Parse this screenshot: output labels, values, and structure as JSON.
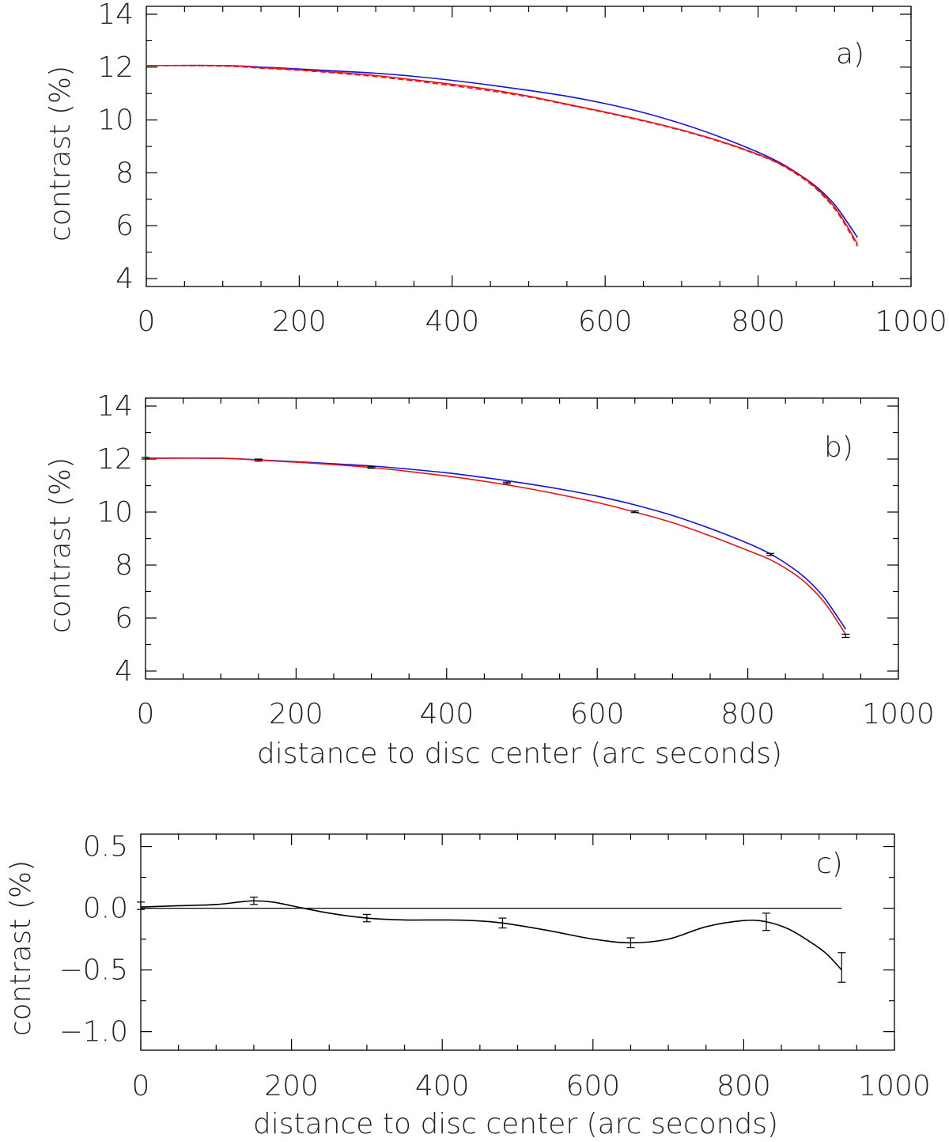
{
  "colors": {
    "observed": "#e8141c",
    "model": "#1414d8",
    "difference": "#000000",
    "axes": "#000000"
  },
  "chart_data": [
    {
      "type": "line",
      "panel_label": "a)",
      "xlabel": "",
      "ylabel": "contrast (%)",
      "xlim": [
        0,
        1000
      ],
      "ylim": [
        3.7,
        14.3
      ],
      "xticks": [
        0,
        200,
        400,
        600,
        800,
        1000
      ],
      "yticks": [
        4,
        6,
        8,
        10,
        12,
        14
      ],
      "x_tick_labels": [
        "0",
        "200",
        "400",
        "600",
        "800",
        "1000"
      ],
      "y_tick_labels": [
        "4",
        "6",
        "8",
        "10",
        "12",
        "14"
      ],
      "series": [
        {
          "style": "solid",
          "color": "#1414d8",
          "x": [
            0,
            100,
            150,
            200,
            250,
            300,
            350,
            400,
            450,
            500,
            550,
            600,
            650,
            700,
            750,
            800,
            830,
            860,
            880,
            900,
            915,
            930
          ],
          "y": [
            12.06,
            12.06,
            12.0,
            11.93,
            11.85,
            11.77,
            11.65,
            11.5,
            11.32,
            11.12,
            10.9,
            10.62,
            10.28,
            9.86,
            9.36,
            8.78,
            8.36,
            7.82,
            7.38,
            6.8,
            6.2,
            5.55
          ]
        },
        {
          "style": "solid",
          "color": "#e8141c",
          "x": [
            0,
            100,
            150,
            200,
            250,
            300,
            350,
            400,
            450,
            500,
            550,
            600,
            650,
            700,
            750,
            800,
            830,
            860,
            880,
            900,
            915,
            930
          ],
          "y": [
            12.06,
            12.06,
            11.98,
            11.9,
            11.8,
            11.68,
            11.52,
            11.35,
            11.15,
            10.9,
            10.6,
            10.3,
            9.98,
            9.62,
            9.2,
            8.7,
            8.32,
            7.8,
            7.32,
            6.7,
            6.05,
            5.3
          ]
        },
        {
          "style": "dashed",
          "color": "#e8141c",
          "x": [
            0,
            100,
            150,
            200,
            250,
            300,
            350,
            400,
            450,
            500,
            550,
            600,
            650,
            700,
            750,
            800,
            830,
            860,
            880,
            900,
            915,
            930
          ],
          "y": [
            12.06,
            12.04,
            11.96,
            11.88,
            11.77,
            11.64,
            11.48,
            11.3,
            11.1,
            10.87,
            10.58,
            10.28,
            9.96,
            9.6,
            9.18,
            8.68,
            8.3,
            7.76,
            7.28,
            6.64,
            5.98,
            5.22
          ]
        }
      ]
    },
    {
      "type": "line",
      "panel_label": "b)",
      "xlabel": "distance to disc center (arc seconds)",
      "ylabel": "contrast (%)",
      "xlim": [
        0,
        1000
      ],
      "ylim": [
        3.7,
        14.3
      ],
      "xticks": [
        0,
        200,
        400,
        600,
        800,
        1000
      ],
      "yticks": [
        4,
        6,
        8,
        10,
        12,
        14
      ],
      "x_tick_labels": [
        "0",
        "200",
        "400",
        "600",
        "800",
        "1000"
      ],
      "y_tick_labels": [
        "4",
        "6",
        "8",
        "10",
        "12",
        "14"
      ],
      "series": [
        {
          "style": "solid",
          "color": "#1414d8",
          "x": [
            0,
            100,
            150,
            200,
            250,
            300,
            350,
            400,
            450,
            500,
            550,
            600,
            650,
            700,
            750,
            800,
            830,
            860,
            880,
            900,
            915,
            930
          ],
          "y": [
            12.03,
            12.03,
            11.97,
            11.9,
            11.82,
            11.74,
            11.62,
            11.48,
            11.3,
            11.1,
            10.87,
            10.6,
            10.27,
            9.87,
            9.38,
            8.82,
            8.42,
            7.88,
            7.42,
            6.82,
            6.22,
            5.58
          ]
        },
        {
          "style": "solid",
          "color": "#e8141c",
          "x": [
            0,
            100,
            150,
            200,
            250,
            300,
            350,
            400,
            450,
            500,
            550,
            600,
            650,
            700,
            750,
            800,
            830,
            860,
            880,
            900,
            915,
            930
          ],
          "y": [
            12.03,
            12.03,
            11.96,
            11.88,
            11.79,
            11.68,
            11.53,
            11.36,
            11.16,
            10.93,
            10.66,
            10.36,
            10.0,
            9.6,
            9.1,
            8.55,
            8.2,
            7.7,
            7.25,
            6.65,
            6.05,
            5.38
          ]
        }
      ],
      "error_bars": {
        "x": [
          0,
          150,
          300,
          480,
          650,
          830,
          930
        ],
        "y": [
          12.03,
          11.96,
          11.68,
          11.1,
          10.01,
          8.4,
          5.33
        ],
        "err": [
          0.03,
          0.04,
          0.03,
          0.03,
          0.03,
          0.04,
          0.06
        ]
      }
    },
    {
      "type": "line",
      "panel_label": "c)",
      "xlabel": "distance to disc center (arc seconds)",
      "ylabel": "contrast (%)",
      "xlim": [
        0,
        1000
      ],
      "ylim": [
        -1.15,
        0.6
      ],
      "xticks": [
        0,
        200,
        400,
        600,
        800,
        1000
      ],
      "yticks": [
        0.5,
        0.0,
        -0.5,
        -1.0
      ],
      "x_tick_labels": [
        "0",
        "200",
        "400",
        "600",
        "800",
        "1000"
      ],
      "y_tick_labels": [
        "0.5",
        "0.0",
        "−0.5",
        "−1.0"
      ],
      "reference_line": {
        "y": 0,
        "x_range": [
          0,
          930
        ]
      },
      "series": [
        {
          "style": "solid",
          "color": "#000000",
          "x": [
            0,
            50,
            100,
            130,
            150,
            175,
            200,
            250,
            300,
            350,
            400,
            440,
            480,
            540,
            600,
            650,
            700,
            750,
            800,
            830,
            860,
            890,
            910,
            930
          ],
          "y": [
            0.01,
            0.02,
            0.03,
            0.05,
            0.06,
            0.05,
            0.02,
            -0.04,
            -0.08,
            -0.095,
            -0.095,
            -0.1,
            -0.12,
            -0.18,
            -0.25,
            -0.28,
            -0.25,
            -0.15,
            -0.1,
            -0.11,
            -0.17,
            -0.28,
            -0.37,
            -0.5
          ]
        }
      ],
      "error_bars": {
        "x": [
          0,
          150,
          300,
          480,
          650,
          830,
          930
        ],
        "y": [
          0.02,
          0.06,
          -0.08,
          -0.12,
          -0.28,
          -0.11,
          -0.48
        ],
        "err": [
          0.03,
          0.03,
          0.03,
          0.04,
          0.04,
          0.07,
          0.12
        ]
      }
    }
  ]
}
